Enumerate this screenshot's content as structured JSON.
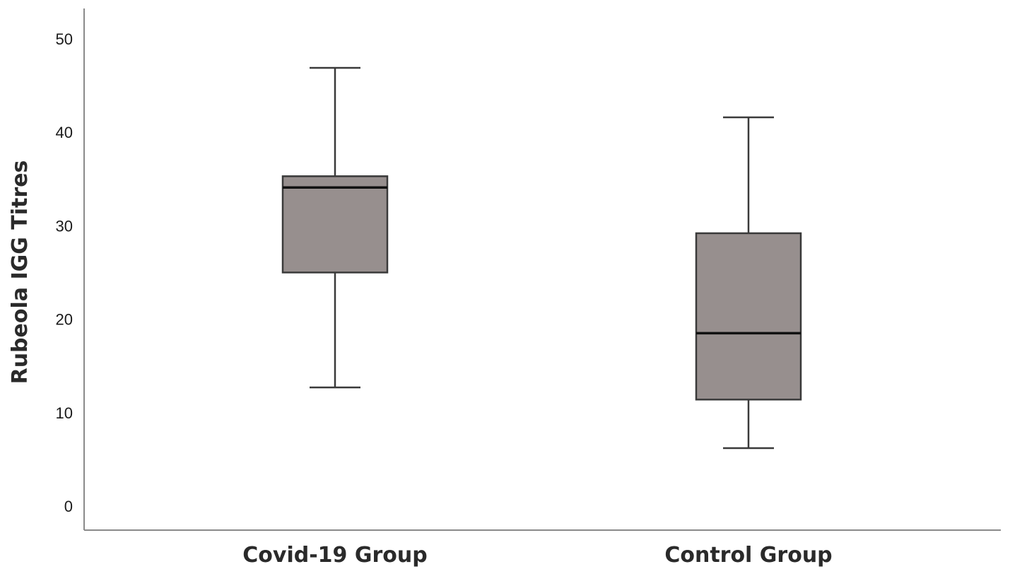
{
  "chart_data": {
    "type": "box",
    "ylabel": "Rubeola IGG Titres",
    "xlabel": "",
    "ylim": [
      0,
      50
    ],
    "yticks": [
      0,
      10,
      20,
      30,
      40,
      50
    ],
    "grid": false,
    "box_color": "#978f8e",
    "categories": [
      "Covid-19 Group",
      "Control Group"
    ],
    "boxes": [
      {
        "category": "Covid-19 Group",
        "min": 12.7,
        "q1": 25.0,
        "median": 34.1,
        "q3": 35.3,
        "max": 46.9
      },
      {
        "category": "Control Group",
        "min": 6.2,
        "q1": 11.4,
        "median": 18.5,
        "q3": 29.2,
        "max": 41.6
      }
    ]
  }
}
